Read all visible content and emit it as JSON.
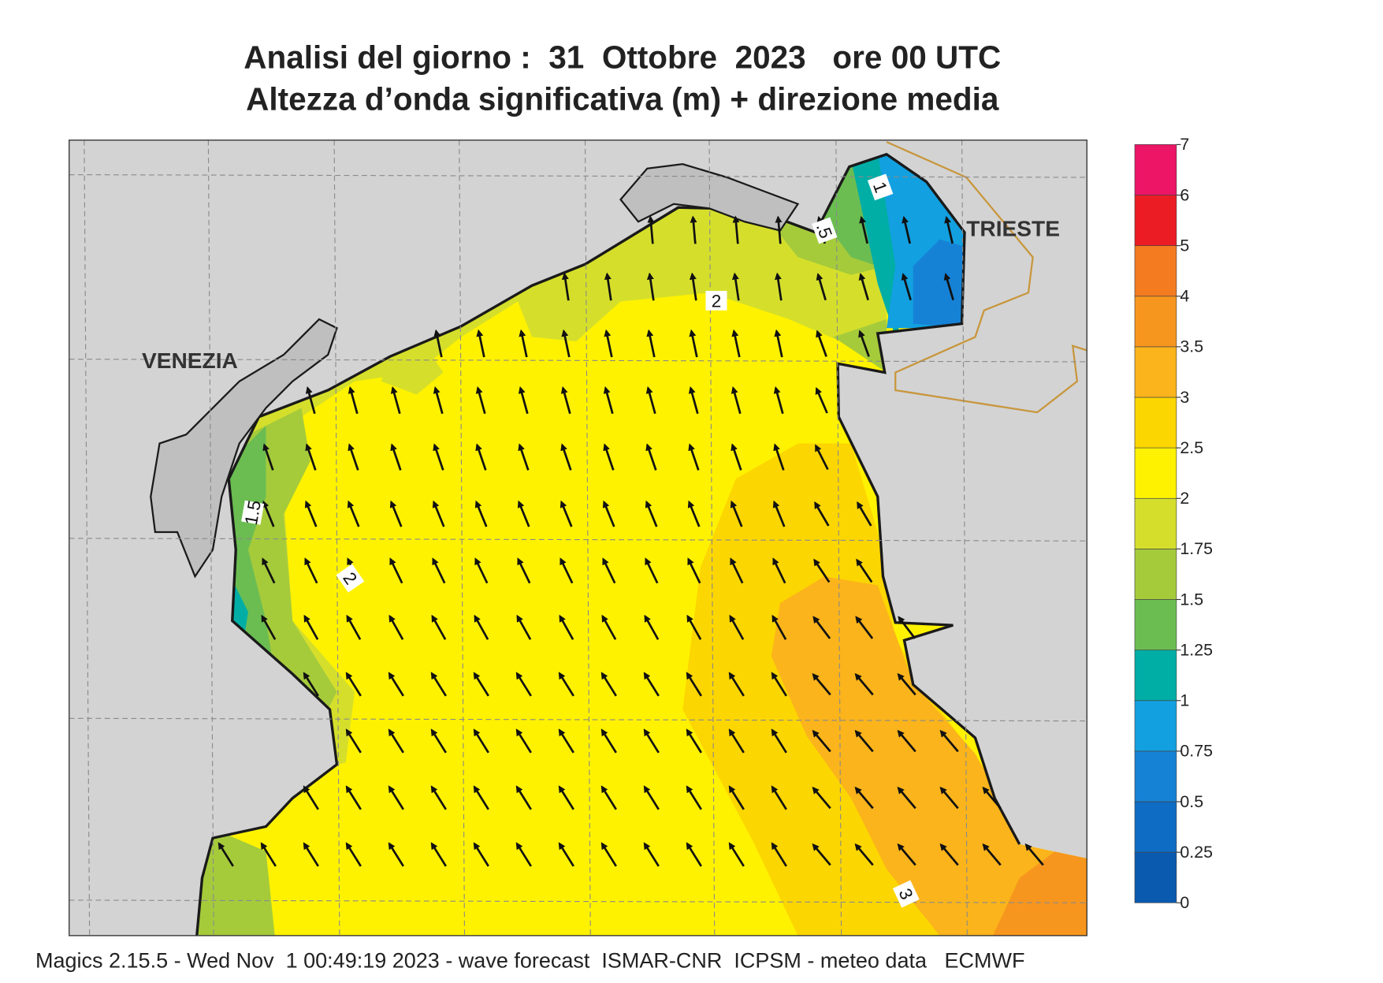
{
  "header": {
    "title": "Analisi del giorno :  31  Ottobre  2023   ore 00 UTC",
    "subtitle": "Altezza d’onda significativa (m) + direzione media"
  },
  "place_labels": [
    "VENEZIA",
    "TRIESTE"
  ],
  "contour_labels": [
    "1",
    ".5",
    "2",
    "1.5",
    "2",
    "3"
  ],
  "colorbar": {
    "levels": [
      0,
      0.25,
      0.5,
      0.75,
      1,
      1.25,
      1.5,
      1.75,
      2,
      2.5,
      3,
      3.5,
      4,
      5,
      6,
      7
    ],
    "colors": [
      "#0a5ab0",
      "#0f6cc4",
      "#1682d6",
      "#12a0e0",
      "#00aea6",
      "#6bbd52",
      "#a5cb3b",
      "#d5df2b",
      "#fff200",
      "#fcd600",
      "#fbb41b",
      "#f7961e",
      "#f47b20",
      "#ec1c24",
      "#ec1566"
    ]
  },
  "footer": "Magics 2.15.5 - Wed Nov  1 00:49:19 2023 - wave forecast  ISMAR-CNR  ICPSM - meteo data   ECMWF"
}
